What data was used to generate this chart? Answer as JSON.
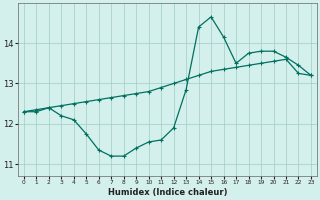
{
  "xlabel": "Humidex (Indice chaleur)",
  "ylabel": "",
  "xlim": [
    -0.5,
    23.5
  ],
  "ylim": [
    10.7,
    15.0
  ],
  "yticks": [
    11,
    12,
    13,
    14
  ],
  "bg_color": "#d4f0ec",
  "grid_color": "#a0ccc4",
  "line_color": "#007060",
  "series1_x": [
    0,
    1,
    2,
    3,
    4,
    5,
    6,
    7,
    8,
    9,
    10,
    11,
    12,
    13,
    14,
    15,
    16,
    17,
    18,
    19,
    20,
    21,
    22,
    23
  ],
  "series1_y": [
    12.3,
    12.3,
    12.4,
    12.2,
    12.1,
    11.75,
    11.35,
    11.2,
    11.2,
    11.4,
    11.55,
    11.6,
    11.9,
    12.85,
    14.4,
    14.65,
    14.15,
    13.5,
    13.75,
    13.8,
    13.8,
    13.65,
    13.45,
    13.2
  ],
  "series2_x": [
    0,
    1,
    2,
    3,
    4,
    5,
    6,
    7,
    8,
    9,
    10,
    11,
    12,
    13,
    14,
    15,
    16,
    17,
    18,
    19,
    20,
    21,
    22,
    23
  ],
  "series2_y": [
    12.3,
    12.35,
    12.4,
    12.45,
    12.5,
    12.55,
    12.6,
    12.65,
    12.7,
    12.75,
    12.8,
    12.9,
    13.0,
    13.1,
    13.2,
    13.3,
    13.35,
    13.4,
    13.45,
    13.5,
    13.55,
    13.6,
    13.25,
    13.2
  ],
  "marker_size": 3,
  "linewidth": 0.9,
  "xlabel_fontsize": 6,
  "ytick_fontsize": 6,
  "xtick_fontsize": 4.2
}
